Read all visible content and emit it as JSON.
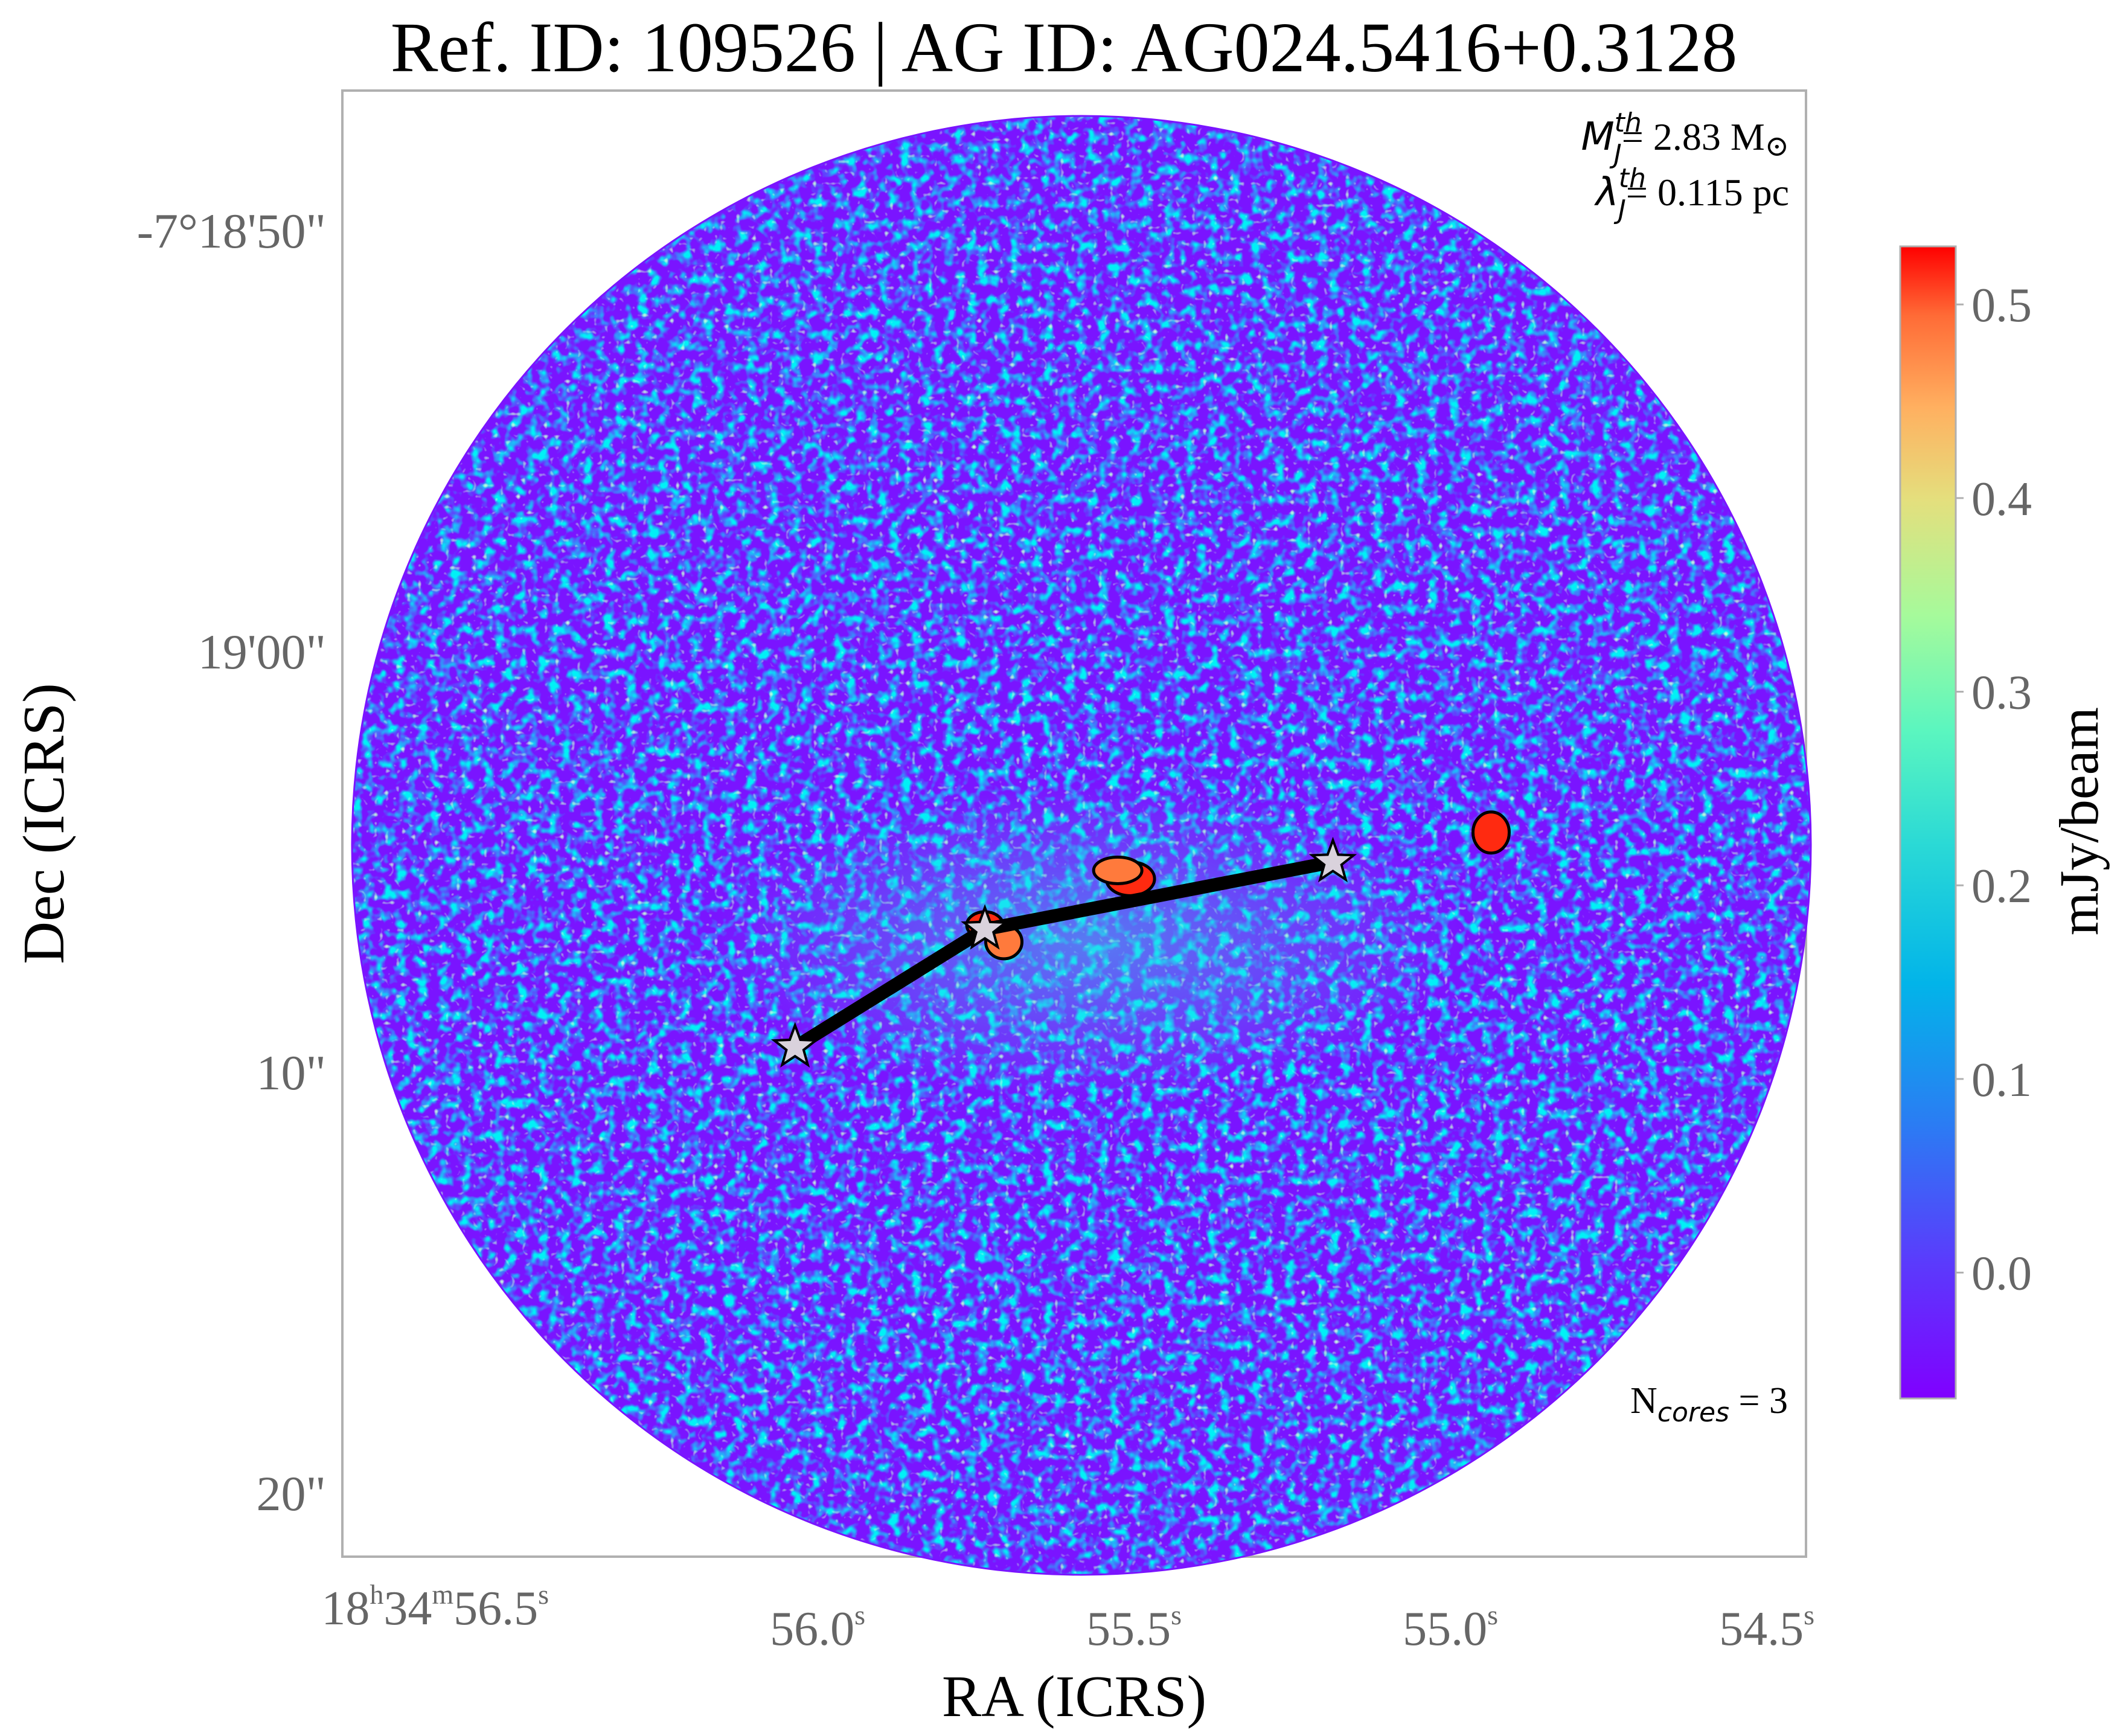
{
  "chart_data": {
    "type": "heatmap",
    "title": "Ref. ID: 109526 | AG ID: AG024.5416+0.3128",
    "xlabel": "RA (ICRS)",
    "ylabel": "Dec (ICRS)",
    "x_ticks": [
      {
        "pre": "18",
        "sup1": "h",
        "mid": "34",
        "sup2": "m",
        "post": "56.5",
        "sup3": "s"
      },
      {
        "pre": "",
        "sup1": "",
        "mid": "",
        "sup2": "",
        "post": "56.0",
        "sup3": "s"
      },
      {
        "pre": "",
        "sup1": "",
        "mid": "",
        "sup2": "",
        "post": "55.5",
        "sup3": "s"
      },
      {
        "pre": "",
        "sup1": "",
        "mid": "",
        "sup2": "",
        "post": "55.0",
        "sup3": "s"
      },
      {
        "pre": "",
        "sup1": "",
        "mid": "",
        "sup2": "",
        "post": "54.5",
        "sup3": "s"
      }
    ],
    "x_tick_values_s": [
      56.5,
      56.0,
      55.5,
      55.0,
      54.5
    ],
    "y_ticks": [
      "-7°18'50\"",
      "19'00\"",
      "10\"",
      "20\""
    ],
    "y_tick_values_arcsec": [
      -50,
      -60,
      -70,
      -80
    ],
    "colorbar": {
      "label": "mJy/beam",
      "ticks": [
        "0.0",
        "0.1",
        "0.2",
        "0.3",
        "0.4",
        "0.5"
      ],
      "tick_values": [
        0.0,
        0.1,
        0.2,
        0.3,
        0.4,
        0.5
      ],
      "vmin": -0.065,
      "vmax": 0.53,
      "colormap": "rainbow"
    },
    "annotations": {
      "mj_label": "M",
      "mj_sup": "th",
      "mj_sub": "J",
      "mj_value": "= 2.83 M",
      "mj_sun": "⊙",
      "lj_label": "λ",
      "lj_sup": "th",
      "lj_sub": "J",
      "lj_value": "= 0.115 pc",
      "ncores_label": "N",
      "ncores_sub": "cores",
      "ncores_value": " = 3"
    },
    "cores": [
      {
        "ra_s": 56.09,
        "dec_arcsec": -69.4
      },
      {
        "ra_s": 55.79,
        "dec_arcsec": -66.6
      },
      {
        "ra_s": 55.24,
        "dec_arcsec": -65.0
      }
    ],
    "emission_blobs": [
      {
        "ra_s": 55.79,
        "dec_arcsec": -66.5,
        "level": 0.52
      },
      {
        "ra_s": 55.56,
        "dec_arcsec": -65.4,
        "level": 0.48
      },
      {
        "ra_s": 54.99,
        "dec_arcsec": -64.3,
        "level": 0.5
      },
      {
        "ra_s": 55.58,
        "dec_arcsec": -65.2,
        "level": 0.42
      },
      {
        "ra_s": 55.76,
        "dec_arcsec": -66.9,
        "level": 0.4
      }
    ],
    "colors": {
      "low": "#7b00ff",
      "high": "#ff0000",
      "cores_line": "#000000",
      "star_fill": "#d9d2dc",
      "frame": "#b0b0b0"
    }
  }
}
